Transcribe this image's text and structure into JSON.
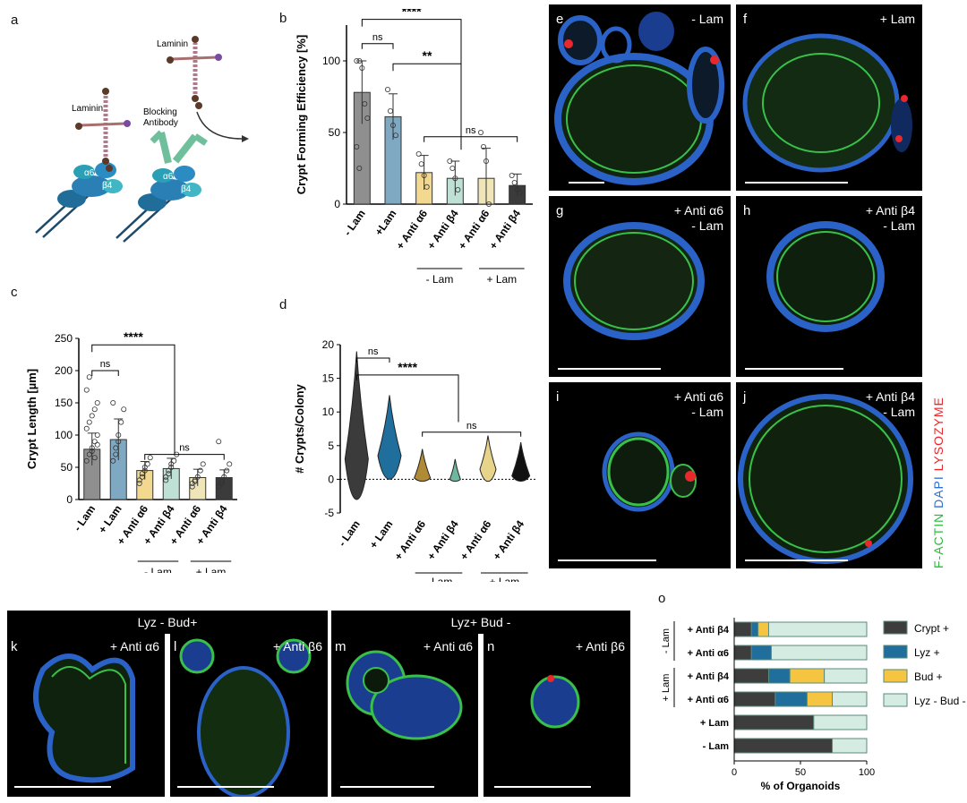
{
  "panels": {
    "a": "a",
    "b": "b",
    "c": "c",
    "d": "d",
    "e": "e",
    "f": "f",
    "g": "g",
    "h": "h",
    "i": "i",
    "j": "j",
    "k": "k",
    "l": "l",
    "m": "m",
    "n": "n",
    "o": "o"
  },
  "schematic": {
    "laminin_left": "Laminin",
    "laminin_right": "Laminin",
    "blocking_antibody": "Blocking\nAntibody",
    "alpha6_left": "α6",
    "beta4_left": "β4",
    "alpha6_right": "α6",
    "beta4_right": "β4"
  },
  "images": {
    "e": "- Lam",
    "f": "+ Lam",
    "g": "+ Anti α6\n- Lam",
    "h": "+ Anti β4\n- Lam",
    "i": "+ Anti α6\n- Lam",
    "j": "+ Anti β4\n- Lam",
    "k": "+ Anti α6",
    "l": "+ Anti β6",
    "m": "+ Anti α6",
    "n": "+ Anti β6",
    "banner_left": "Lyz -  Bud+",
    "banner_right": "Lyz+  Bud -",
    "stain_factin": "F-ACTIN",
    "stain_dapi": "DAPI",
    "stain_lysozyme": "LYSOZYME"
  },
  "colors": {
    "gray": "#8f8f8f",
    "blue": "#7fa9c2",
    "yellow": "#f3d98f",
    "green": "#bfe0d5",
    "cream": "#efe5b8",
    "dark": "#3b3b3b",
    "crypt": "#3d3d3d",
    "lyz": "#1f6e9c",
    "bud": "#f5c542",
    "neg": "#d4ece2",
    "factin": "#2db83d",
    "dapi": "#2f6fd6",
    "lysozyme": "#e8282c"
  },
  "chart_data": [
    {
      "id": "b",
      "type": "bar",
      "ylabel": "Crypt Forming Efficiency [%]",
      "categories": [
        "- Lam",
        "+Lam",
        "+ Anti α6",
        "+ Anti β4",
        "+ Anti α6",
        "+ Anti β4"
      ],
      "values": [
        78,
        61,
        22,
        18,
        18,
        13
      ],
      "sd": [
        22,
        16,
        12,
        12,
        21,
        8
      ],
      "ylim": [
        0,
        125
      ],
      "yticks": [
        0,
        50,
        100
      ],
      "group_labels": [
        "- Lam",
        "+ Lam"
      ],
      "sig": [
        "ns",
        "****",
        "**",
        "ns"
      ]
    },
    {
      "id": "c",
      "type": "bar",
      "ylabel": "Crypt Length [µm]",
      "categories": [
        "- Lam",
        "+ Lam",
        "+ Anti α6",
        "+ Anti β4",
        "+ Anti α6",
        "+ Anti β4"
      ],
      "values": [
        78,
        93,
        45,
        48,
        34,
        34
      ],
      "sd": [
        25,
        32,
        14,
        16,
        13,
        12
      ],
      "ylim": [
        0,
        250
      ],
      "yticks": [
        0,
        50,
        100,
        150,
        200,
        250
      ],
      "group_labels": [
        "- Lam",
        "+ Lam"
      ],
      "sig": [
        "ns",
        "****",
        "ns"
      ]
    },
    {
      "id": "d",
      "type": "violin",
      "ylabel": "# Crypts/Colony",
      "categories": [
        "- Lam",
        "+ Lam",
        "+ Anti α6",
        "+ Anti β4",
        "+ Anti α6",
        "+ Anti β4"
      ],
      "ylim": [
        -5,
        20
      ],
      "yticks": [
        -5,
        0,
        5,
        10,
        15,
        20
      ],
      "group_labels": [
        "- Lam",
        "+ Lam"
      ],
      "sig": [
        "ns",
        "****",
        "ns"
      ]
    },
    {
      "id": "o",
      "type": "stacked-bar-horizontal",
      "xlabel": "% of Organoids",
      "categories": [
        "+ Anti β4",
        "+ Anti α6",
        "+ Anti β4",
        "+ Anti α6",
        "+ Lam",
        "- Lam"
      ],
      "group_labels": [
        "- Lam",
        "+ Lam"
      ],
      "xticks": [
        0,
        50,
        100
      ],
      "series": [
        {
          "name": "Crypt +",
          "values": [
            13,
            13,
            26,
            31,
            60,
            74
          ]
        },
        {
          "name": "Lyz +",
          "values": [
            5,
            15,
            16,
            24,
            0,
            0
          ]
        },
        {
          "name": "Bud +",
          "values": [
            8,
            0,
            26,
            19,
            0,
            0
          ]
        },
        {
          "name": "Lyz - Bud -",
          "values": [
            74,
            72,
            32,
            26,
            40,
            26
          ]
        }
      ]
    }
  ]
}
